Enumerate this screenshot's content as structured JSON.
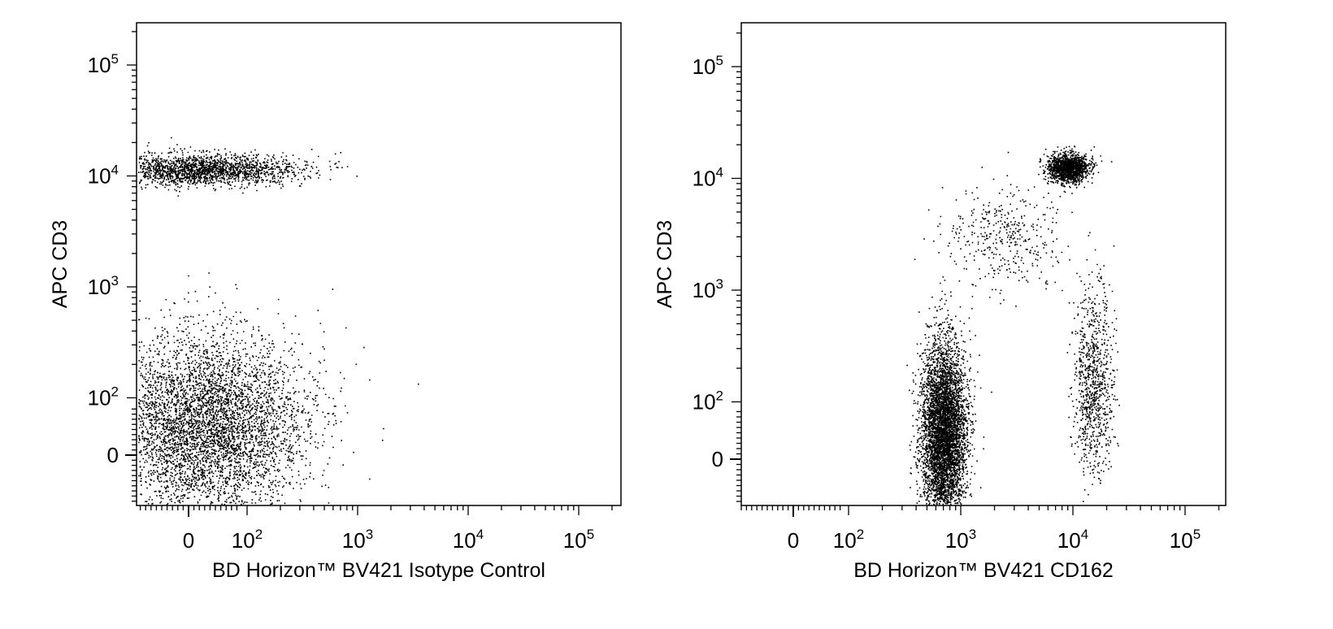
{
  "chart_data": [
    {
      "type": "scatter",
      "xlabel": "BD Horizon™ BV421 Isotype Control",
      "ylabel": "APC CD3",
      "x_scale": "biexponential",
      "y_scale": "biexponential",
      "xlim": [
        -200,
        250000
      ],
      "ylim": [
        -200,
        250000
      ],
      "x_ticks": [
        {
          "value": 0,
          "base": "0",
          "exp": ""
        },
        {
          "value": 100,
          "base": "10",
          "exp": "2"
        },
        {
          "value": 1000,
          "base": "10",
          "exp": "3"
        },
        {
          "value": 10000,
          "base": "10",
          "exp": "4"
        },
        {
          "value": 100000,
          "base": "10",
          "exp": "5"
        }
      ],
      "y_ticks": [
        {
          "value": 0,
          "base": "0",
          "exp": ""
        },
        {
          "value": 100,
          "base": "10",
          "exp": "2"
        },
        {
          "value": 1000,
          "base": "10",
          "exp": "3"
        },
        {
          "value": 10000,
          "base": "10",
          "exp": "4"
        },
        {
          "value": 100000,
          "base": "10",
          "exp": "5"
        }
      ],
      "populations": [
        {
          "x_center": 20,
          "y_center": 11500,
          "x_spread": 1.0,
          "y_spread": 0.16,
          "count": 2000
        },
        {
          "x_center": 30,
          "y_center": 60,
          "x_spread": 1.0,
          "y_spread": 0.9,
          "count": 5200
        }
      ]
    },
    {
      "type": "scatter",
      "xlabel": "BD Horizon™ BV421 CD162",
      "ylabel": "APC CD3",
      "x_scale": "biexponential",
      "y_scale": "biexponential",
      "xlim": [
        -200,
        250000
      ],
      "ylim": [
        -200,
        250000
      ],
      "x_ticks": [
        {
          "value": 0,
          "base": "0",
          "exp": ""
        },
        {
          "value": 100,
          "base": "10",
          "exp": "2"
        },
        {
          "value": 1000,
          "base": "10",
          "exp": "3"
        },
        {
          "value": 10000,
          "base": "10",
          "exp": "4"
        },
        {
          "value": 100000,
          "base": "10",
          "exp": "5"
        }
      ],
      "y_ticks": [
        {
          "value": 0,
          "base": "0",
          "exp": ""
        },
        {
          "value": 100,
          "base": "10",
          "exp": "2"
        },
        {
          "value": 1000,
          "base": "10",
          "exp": "3"
        },
        {
          "value": 10000,
          "base": "10",
          "exp": "4"
        },
        {
          "value": 100000,
          "base": "10",
          "exp": "5"
        }
      ],
      "populations": [
        {
          "x_center": 9000,
          "y_center": 12500,
          "x_spread": 0.2,
          "y_spread": 0.14,
          "count": 1500
        },
        {
          "x_center": 700,
          "y_center": 50,
          "x_spread": 0.22,
          "y_spread": 0.9,
          "count": 5200
        },
        {
          "x_center": 15000,
          "y_center": 150,
          "x_spread": 0.2,
          "y_spread": 0.9,
          "count": 900
        },
        {
          "x_center": 2500,
          "y_center": 3000,
          "x_spread": 0.6,
          "y_spread": 0.5,
          "count": 400
        }
      ]
    }
  ]
}
